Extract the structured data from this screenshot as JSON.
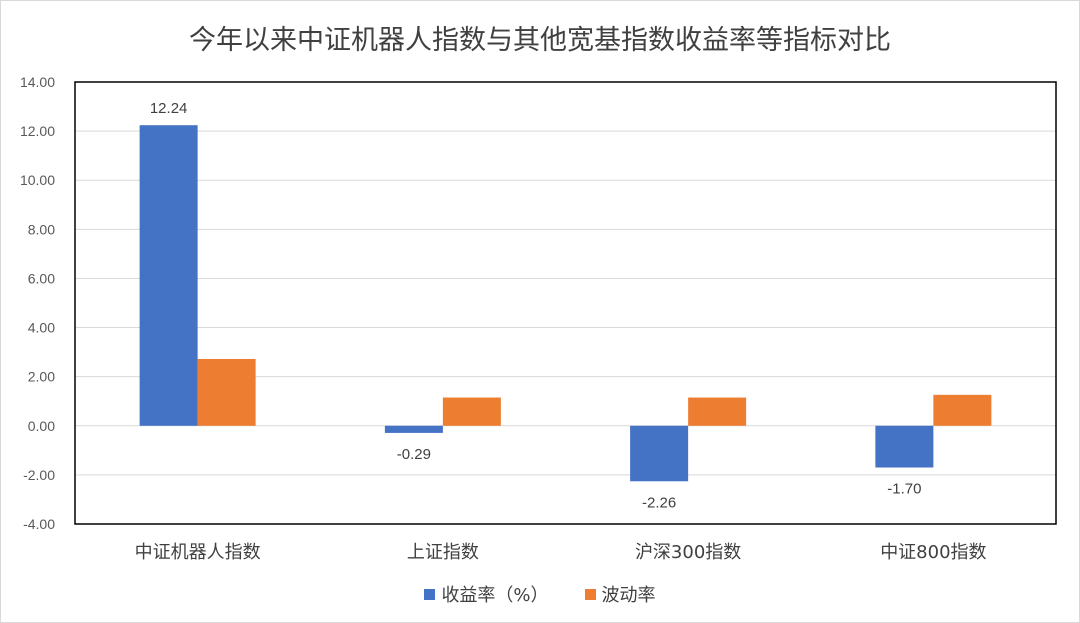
{
  "chart_data": {
    "type": "bar",
    "title": "今年以来中证机器人指数与其他宽基指数收益率等指标对比",
    "categories": [
      "中证机器人指数",
      "上证指数",
      "沪深300指数",
      "中证800指数"
    ],
    "series": [
      {
        "name": "收益率（%）",
        "color": "#4472C4",
        "values": [
          12.24,
          -0.29,
          -2.26,
          -1.7
        ],
        "labels": [
          "12.24",
          "-0.29",
          "-2.26",
          "-1.70"
        ]
      },
      {
        "name": "波动率",
        "color": "#ED7D31",
        "values": [
          2.72,
          1.15,
          1.15,
          1.26
        ]
      }
    ],
    "ylim": [
      -4,
      14
    ],
    "yticks": [
      "-4.00",
      "-2.00",
      "0.00",
      "2.00",
      "4.00",
      "6.00",
      "8.00",
      "10.00",
      "12.00",
      "14.00"
    ],
    "xlabel": "",
    "ylabel": "",
    "grid": true,
    "legend": "bottom"
  }
}
